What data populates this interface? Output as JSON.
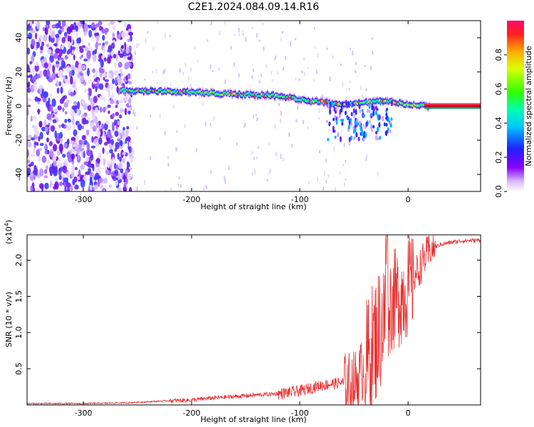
{
  "figure": {
    "title": "C2E1.2024.084.09.14.R16"
  },
  "chart_data": [
    {
      "type": "heatmap",
      "xlabel": "Height of straight line (km)",
      "ylabel": "Frequency (Hz)",
      "xlim": [
        -352,
        67
      ],
      "ylim": [
        -50,
        50
      ],
      "x_ticks": [
        -300,
        -200,
        -100,
        0
      ],
      "y_ticks": [
        -40,
        -20,
        0,
        20,
        40
      ],
      "colorbar": {
        "label": "Normalized spectral amplitude",
        "range": [
          0,
          1
        ],
        "ticks": [
          "0.0",
          "0.2",
          "0.4",
          "0.6",
          "0.8"
        ],
        "colormap": "rainbow (violet-blue-cyan-green-yellow-red)"
      },
      "ridge": {
        "description": "Doppler ridge frequency vs height",
        "x": [
          -265,
          -240,
          -200,
          -160,
          -120,
          -90,
          -60,
          -40,
          -20,
          0,
          20,
          67
        ],
        "y": [
          9,
          9,
          8,
          7,
          6,
          3,
          1,
          2,
          3,
          1,
          0,
          0
        ]
      },
      "noise_region_x": [
        -352,
        -265
      ]
    },
    {
      "type": "line",
      "xlabel": "Height of straight line (km)",
      "ylabel": "SNR (10 * v/v)",
      "y_multiplier": "(x10^4)",
      "xlim": [
        -352,
        67
      ],
      "ylim": [
        0,
        2.35
      ],
      "x_ticks": [
        -300,
        -200,
        -100,
        0
      ],
      "y_ticks": [
        "0.5",
        "1.0",
        "1.5",
        "2.0"
      ],
      "series": [
        {
          "color": "#e83030",
          "x": [
            -352,
            -300,
            -260,
            -220,
            -200,
            -180,
            -160,
            -140,
            -120,
            -100,
            -80,
            -60,
            -50,
            -45,
            -40,
            -35,
            -30,
            -25,
            -20,
            -15,
            -10,
            -5,
            0,
            5,
            10,
            15,
            20,
            30,
            40,
            50,
            67
          ],
          "y": [
            0.02,
            0.02,
            0.03,
            0.06,
            0.07,
            0.1,
            0.12,
            0.14,
            0.16,
            0.2,
            0.28,
            0.32,
            0.35,
            0.45,
            0.6,
            0.8,
            1.0,
            1.2,
            1.4,
            1.5,
            1.55,
            1.6,
            1.7,
            1.8,
            1.9,
            2.05,
            2.15,
            2.22,
            2.25,
            2.27,
            2.28
          ]
        }
      ]
    }
  ]
}
